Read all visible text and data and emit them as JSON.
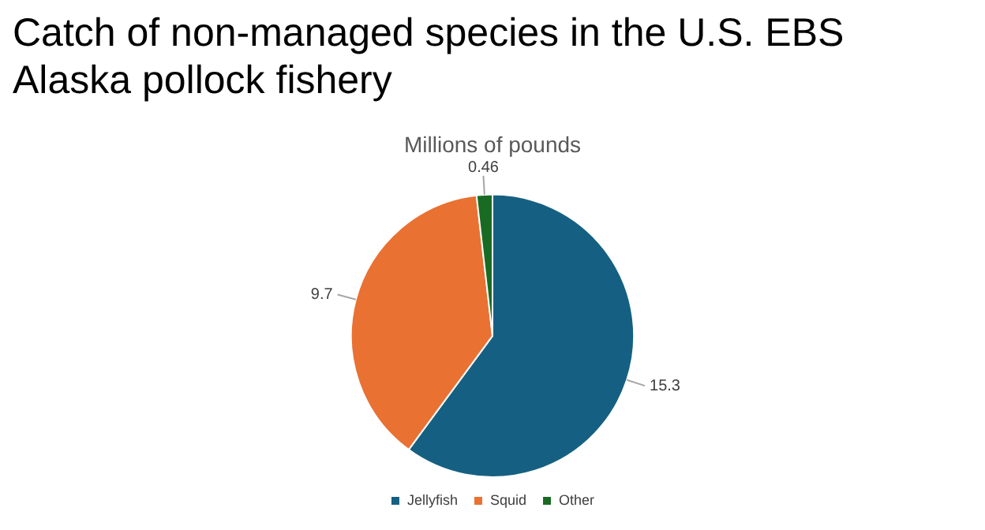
{
  "chart_data": {
    "type": "pie",
    "title": "Catch of non-managed species in the U.S. EBS Alaska pollock fishery",
    "subtitle": "Millions of pounds",
    "categories": [
      "Jellyfish",
      "Squid",
      "Other"
    ],
    "values": [
      15.3,
      9.7,
      0.46
    ],
    "colors": [
      "#156082",
      "#e97132",
      "#196b24"
    ],
    "data_labels": true,
    "legend": "bottom"
  }
}
